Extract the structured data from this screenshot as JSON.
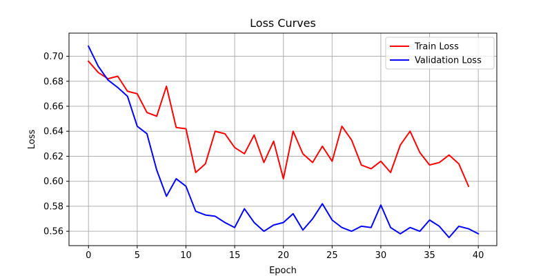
{
  "chart_data": {
    "type": "line",
    "title": "Loss Curves",
    "xlabel": "Epoch",
    "ylabel": "Loss",
    "xlim": [
      -2,
      41.9
    ],
    "ylim": [
      0.5485,
      0.7185
    ],
    "xticks": [
      0,
      5,
      10,
      15,
      20,
      25,
      30,
      35,
      40
    ],
    "yticks": [
      0.56,
      0.58,
      0.6,
      0.62,
      0.64,
      0.66,
      0.68,
      0.7
    ],
    "ytick_labels": [
      "0.56",
      "0.58",
      "0.60",
      "0.62",
      "0.64",
      "0.66",
      "0.68",
      "0.70"
    ],
    "grid": true,
    "legend_position": "top-right",
    "series": [
      {
        "name": "Train Loss",
        "color": "#ff0000",
        "x": [
          0,
          1,
          2,
          3,
          4,
          5,
          6,
          7,
          8,
          9,
          10,
          11,
          12,
          13,
          14,
          15,
          16,
          17,
          18,
          19,
          20,
          21,
          22,
          23,
          24,
          25,
          26,
          27,
          28,
          29,
          30,
          31,
          32,
          33,
          34,
          35,
          36,
          37,
          38,
          39
        ],
        "values": [
          0.696,
          0.687,
          0.682,
          0.684,
          0.672,
          0.67,
          0.655,
          0.652,
          0.676,
          0.643,
          0.642,
          0.607,
          0.614,
          0.64,
          0.638,
          0.627,
          0.622,
          0.637,
          0.615,
          0.632,
          0.602,
          0.64,
          0.622,
          0.615,
          0.628,
          0.616,
          0.644,
          0.633,
          0.613,
          0.61,
          0.616,
          0.607,
          0.629,
          0.64,
          0.623,
          0.613,
          0.615,
          0.621,
          0.614,
          0.596
        ]
      },
      {
        "name": "Validation Loss",
        "color": "#0000ff",
        "x": [
          0,
          1,
          2,
          3,
          4,
          5,
          6,
          7,
          8,
          9,
          10,
          11,
          12,
          13,
          14,
          15,
          16,
          17,
          18,
          19,
          20,
          21,
          22,
          23,
          24,
          25,
          26,
          27,
          28,
          29,
          30,
          31,
          32,
          33,
          34,
          35,
          36,
          37,
          38,
          39,
          40
        ],
        "values": [
          0.708,
          0.692,
          0.681,
          0.675,
          0.668,
          0.644,
          0.638,
          0.609,
          0.588,
          0.602,
          0.596,
          0.576,
          0.573,
          0.572,
          0.567,
          0.563,
          0.578,
          0.567,
          0.56,
          0.565,
          0.567,
          0.574,
          0.561,
          0.57,
          0.582,
          0.569,
          0.563,
          0.56,
          0.564,
          0.563,
          0.581,
          0.563,
          0.558,
          0.563,
          0.56,
          0.569,
          0.564,
          0.555,
          0.564,
          0.562,
          0.558
        ]
      }
    ]
  }
}
